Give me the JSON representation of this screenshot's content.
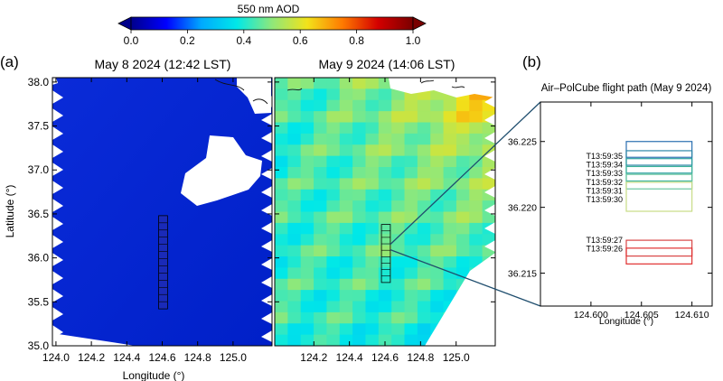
{
  "colorbar": {
    "title": "550 nm AOD",
    "ticks": [
      0.0,
      0.2,
      0.4,
      0.6,
      0.8,
      1.0
    ],
    "tick_labels": [
      "0.0",
      "0.2",
      "0.4",
      "0.6",
      "0.8",
      "1.0"
    ],
    "colormap": [
      "#00008b",
      "#0000ff",
      "#00aaff",
      "#00e8e8",
      "#8fe87a",
      "#f2e21a",
      "#ff7a00",
      "#d40000",
      "#7a0000"
    ]
  },
  "panel_labels": {
    "a": "(a)",
    "b": "(b)"
  },
  "chart_data": [
    {
      "type": "heatmap",
      "title": "May 8 2024 (12:42 LST)",
      "xlabel": "Longitude (°)",
      "ylabel": "Latitude (°)",
      "xlim": [
        123.98,
        125.22
      ],
      "ylim": [
        35.0,
        38.05
      ],
      "xticks": [
        124.0,
        124.2,
        124.4,
        124.6,
        124.8,
        125.0
      ],
      "xtick_labels": [
        "124.0",
        "124.2",
        "124.4",
        "124.6",
        "124.8",
        "125.0"
      ],
      "yticks": [
        35.0,
        35.5,
        36.0,
        36.5,
        37.0,
        37.5,
        38.0
      ],
      "ytick_labels": [
        "35.0",
        "35.5",
        "36.0",
        "36.5",
        "37.0",
        "37.5",
        "38.0"
      ],
      "base_aod": 0.12,
      "cloud_mask": "white region near 124.8–125.1°E, 36.8–37.3°N",
      "flight_box": {
        "lon": [
          124.58,
          124.63
        ],
        "lat": [
          35.42,
          36.48
        ],
        "rows": 13
      }
    },
    {
      "type": "heatmap",
      "title": "May 9 2024 (14:06 LST)",
      "xlabel": "Longitude (°)",
      "xlim": [
        123.98,
        125.22
      ],
      "ylim": [
        35.0,
        38.05
      ],
      "xticks": [
        124.2,
        124.4,
        124.6,
        124.8,
        125.0
      ],
      "xtick_labels": [
        "124.2",
        "124.4",
        "124.6",
        "124.8",
        "125.0"
      ],
      "aod_range": [
        0.35,
        0.75
      ],
      "flight_box": {
        "lon": [
          124.58,
          124.63
        ],
        "lat": [
          35.72,
          36.38
        ],
        "rows": 9
      }
    },
    {
      "type": "line",
      "title": "Air–PolCube flight path (May 9 2024)",
      "xlabel": "Longitude (°)",
      "xlim": [
        124.595,
        124.612
      ],
      "ylim": [
        36.2125,
        36.228
      ],
      "xticks": [
        124.6,
        124.605,
        124.61
      ],
      "xtick_labels": [
        "124.600",
        "124.605",
        "124.610"
      ],
      "yticks": [
        36.215,
        36.22,
        36.225
      ],
      "ytick_labels": [
        "36.215",
        "36.220",
        "36.225"
      ],
      "footprint_lon": [
        124.6035,
        124.61
      ],
      "footprints": [
        {
          "time": "T13:59:35",
          "lat": [
            36.2238,
            36.225
          ],
          "color": "#2b6fb0"
        },
        {
          "time": "T13:59:34",
          "lat": [
            36.2232,
            36.2243
          ],
          "color": "#2e86a8"
        },
        {
          "time": "T13:59:33",
          "lat": [
            36.2226,
            36.2237
          ],
          "color": "#2aa0a0"
        },
        {
          "time": "T13:59:32",
          "lat": [
            36.222,
            36.2231
          ],
          "color": "#3cb39a"
        },
        {
          "time": "T13:59:31",
          "lat": [
            36.2214,
            36.2225
          ],
          "color": "#6cc7a0"
        },
        {
          "time": "T13:59:30",
          "lat": [
            36.2197,
            36.2219
          ],
          "color": "#c8dc86"
        },
        {
          "time": "T13:59:27",
          "lat": [
            36.2163,
            36.2175
          ],
          "color": "#d84545"
        },
        {
          "time": "T13:59:26",
          "lat": [
            36.2157,
            36.2169
          ],
          "color": "#e03030"
        }
      ]
    }
  ]
}
